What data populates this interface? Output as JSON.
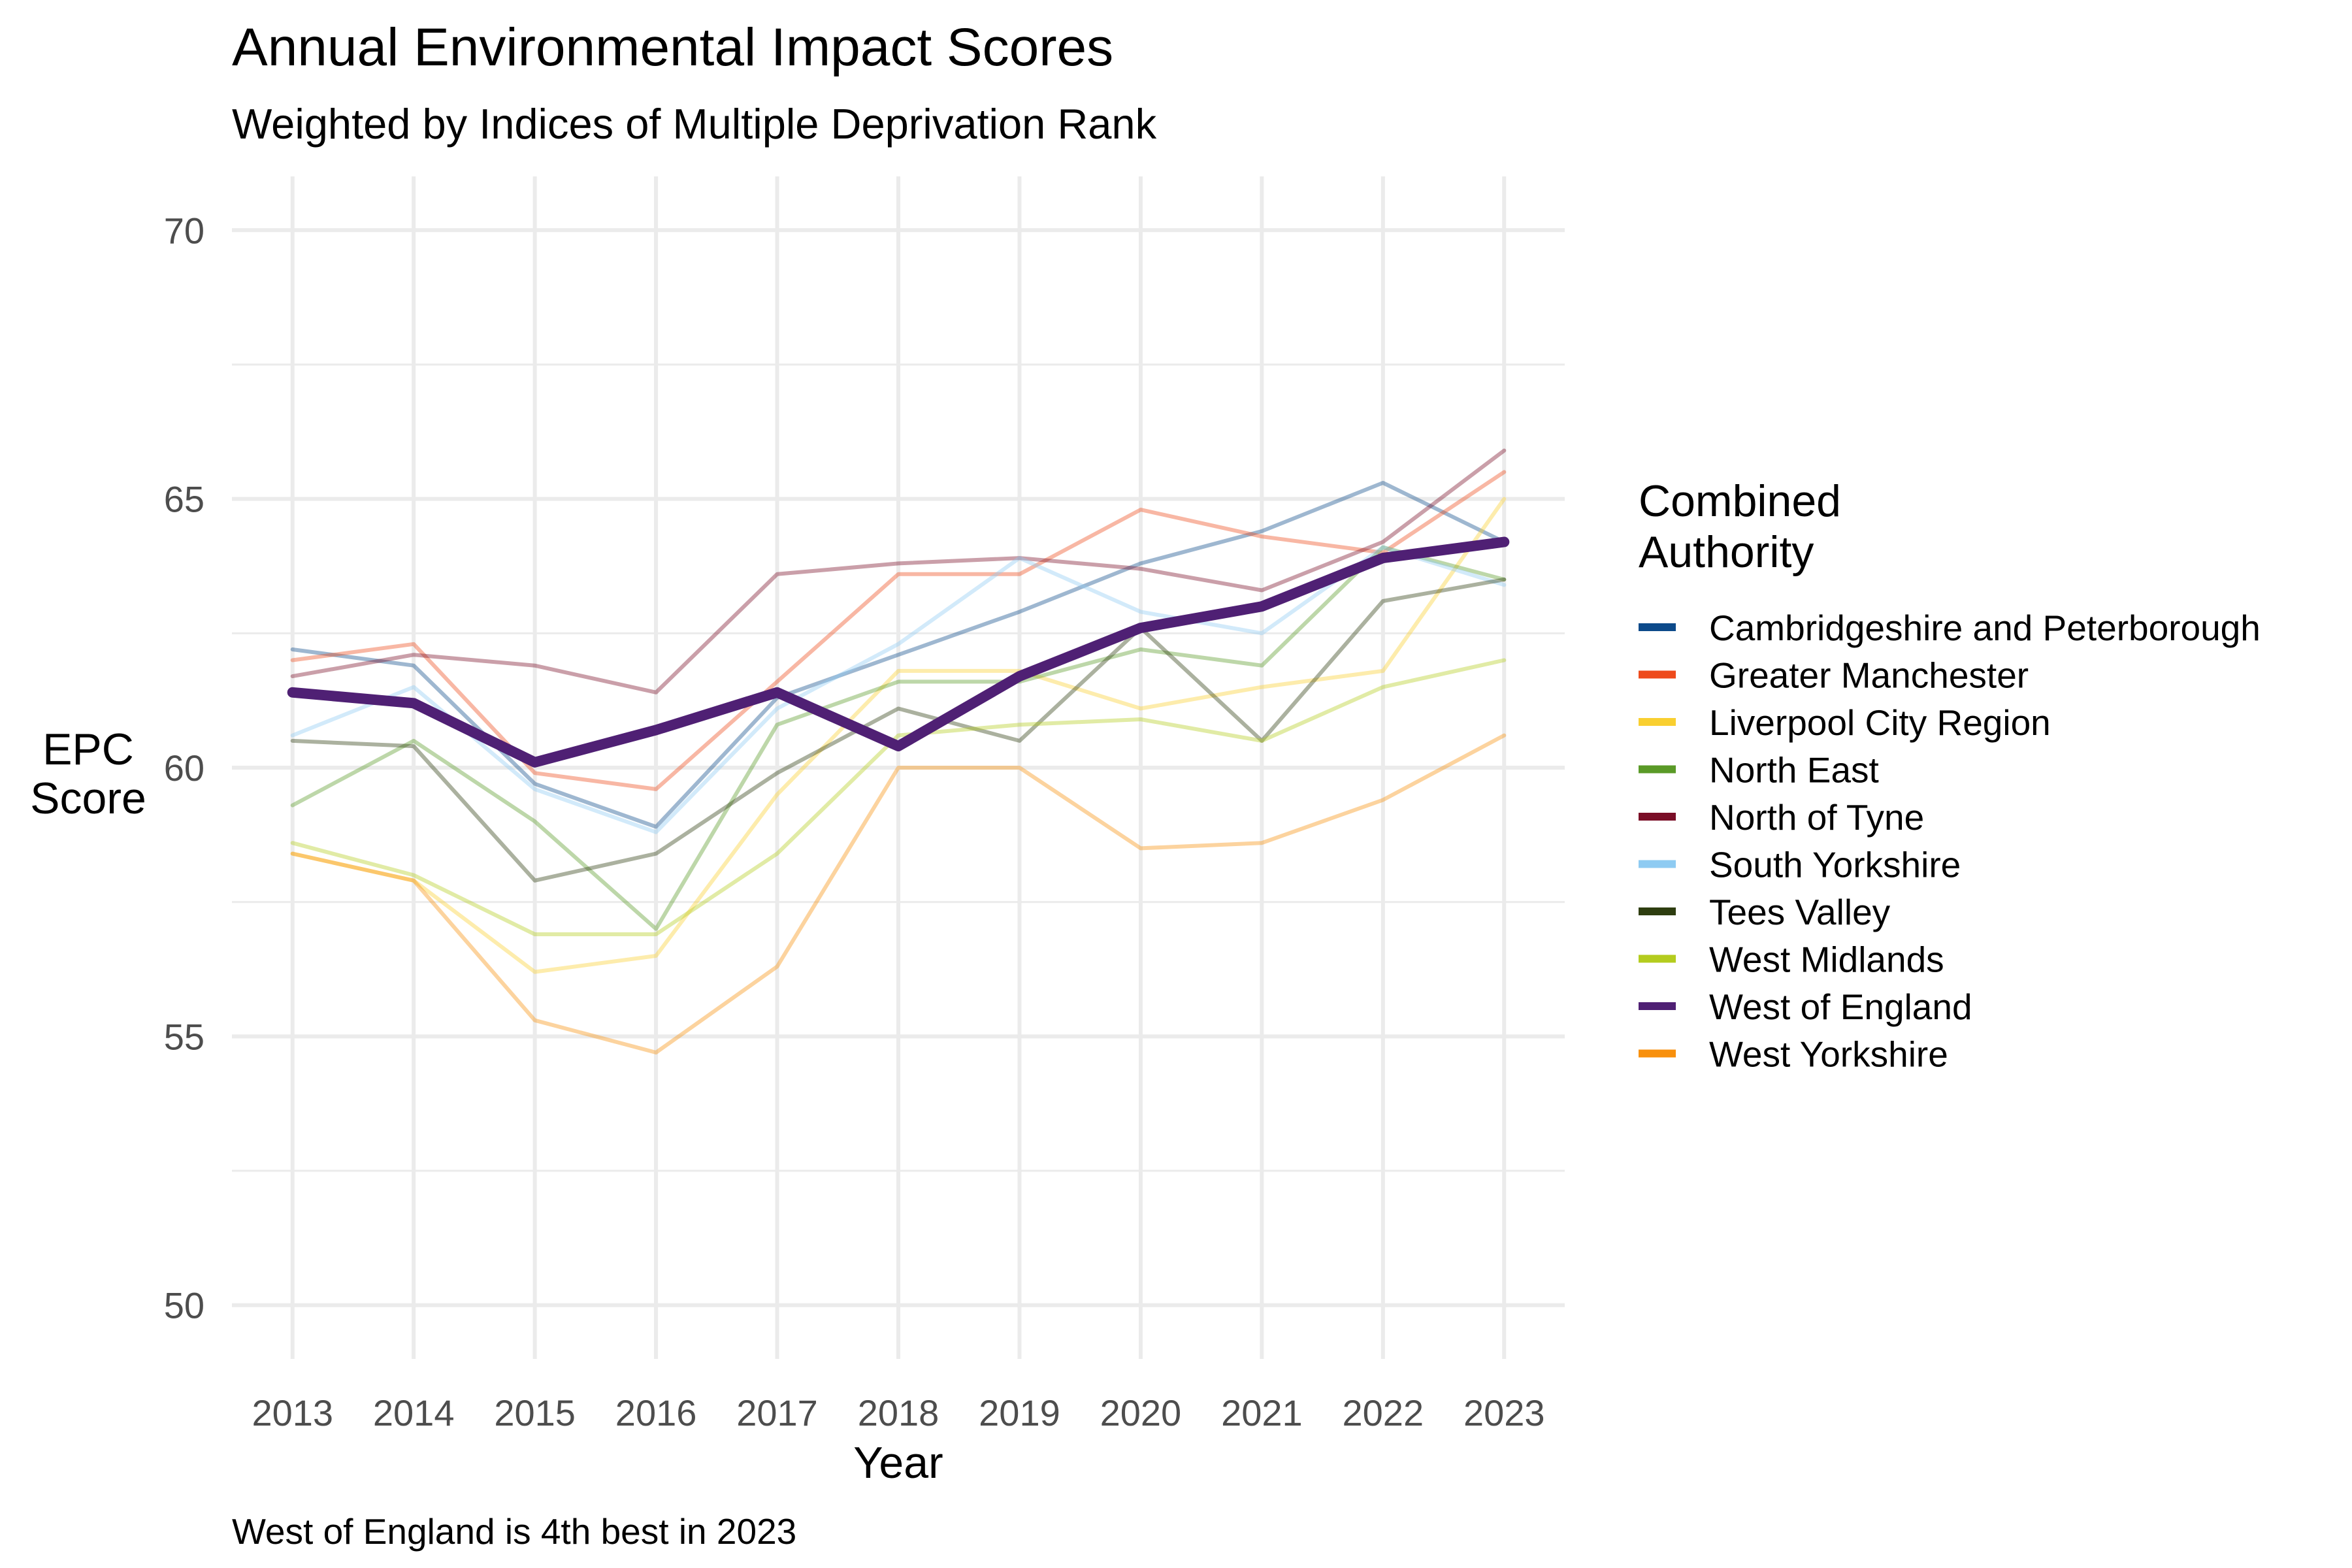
{
  "chart_data": {
    "type": "line",
    "title": "Annual Environmental Impact Scores",
    "subtitle": "Weighted by Indices of Multiple Deprivation Rank",
    "caption": "West of England is 4th best in 2023",
    "xlabel": "Year",
    "ylabel": [
      "EPC",
      "Score"
    ],
    "xlim": [
      2012.5,
      2023.5
    ],
    "ylim": [
      49,
      71
    ],
    "yticks": [
      50,
      55,
      60,
      65,
      70
    ],
    "grid": true,
    "legend_title": [
      "Combined",
      "Authority"
    ],
    "legend_position": "right",
    "x": [
      2013,
      2014,
      2015,
      2016,
      2017,
      2018,
      2019,
      2020,
      2021,
      2022,
      2023
    ],
    "highlight": "West of England",
    "series": [
      {
        "name": "Cambridgeshire and Peterborough",
        "color": "#0d4a8a",
        "values": [
          62.2,
          61.9,
          59.7,
          58.9,
          61.3,
          62.1,
          62.9,
          63.8,
          64.4,
          65.3,
          64.2
        ]
      },
      {
        "name": "Greater Manchester",
        "color": "#ee4b1c",
        "values": [
          62.0,
          62.3,
          59.9,
          59.6,
          61.6,
          63.6,
          63.6,
          64.8,
          64.3,
          64.0,
          65.5
        ]
      },
      {
        "name": "Liverpool City Region",
        "color": "#f9cf30",
        "values": [
          58.4,
          57.9,
          56.2,
          56.5,
          59.5,
          61.8,
          61.8,
          61.1,
          61.5,
          61.8,
          65.0
        ]
      },
      {
        "name": "North East",
        "color": "#5a9a27",
        "values": [
          59.3,
          60.5,
          59.0,
          57.0,
          60.8,
          61.6,
          61.6,
          62.2,
          61.9,
          64.1,
          63.5
        ]
      },
      {
        "name": "North of Tyne",
        "color": "#7a0e27",
        "values": [
          61.7,
          62.1,
          61.9,
          61.4,
          63.6,
          63.8,
          63.9,
          63.7,
          63.3,
          64.2,
          65.9
        ]
      },
      {
        "name": "South Yorkshire",
        "color": "#8ecbf2",
        "values": [
          60.6,
          61.5,
          59.6,
          58.8,
          61.1,
          62.3,
          63.9,
          62.9,
          62.5,
          64.1,
          63.4
        ]
      },
      {
        "name": "Tees Valley",
        "color": "#2e3d10",
        "values": [
          60.5,
          60.4,
          57.9,
          58.4,
          59.9,
          61.1,
          60.5,
          62.6,
          60.5,
          63.1,
          63.5
        ]
      },
      {
        "name": "West Midlands",
        "color": "#b4cc1e",
        "values": [
          58.6,
          58.0,
          56.9,
          56.9,
          58.4,
          60.6,
          60.8,
          60.9,
          60.5,
          61.5,
          62.0
        ]
      },
      {
        "name": "West of England",
        "color": "#4f2074",
        "values": [
          61.4,
          61.2,
          60.1,
          60.7,
          61.4,
          60.4,
          61.7,
          62.6,
          63.0,
          63.9,
          64.2
        ]
      },
      {
        "name": "West Yorkshire",
        "color": "#f8900d",
        "values": [
          58.4,
          57.9,
          55.3,
          54.7,
          56.3,
          60.0,
          60.0,
          58.5,
          58.6,
          59.4,
          60.6
        ]
      }
    ]
  }
}
